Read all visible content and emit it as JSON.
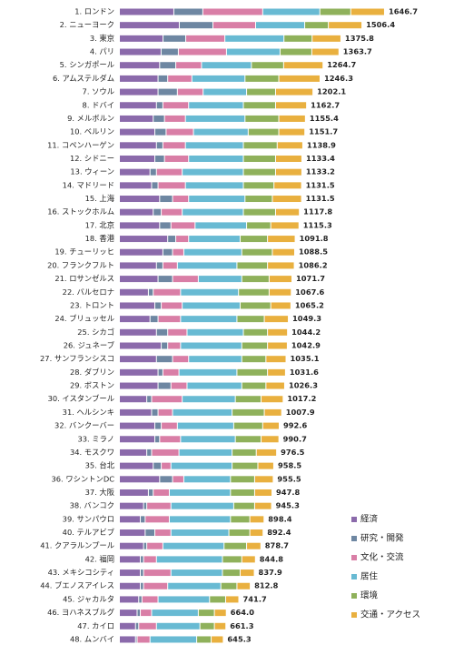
{
  "chart_data": {
    "type": "stacked-barh",
    "categories": [
      "1. ロンドン",
      "2. ニューヨーク",
      "3. 東京",
      "4. パリ",
      "5. シンガポール",
      "6. アムステルダム",
      "7. ソウル",
      "8. ドバイ",
      "9. メルボルン",
      "10. ベルリン",
      "11. コペンハーゲン",
      "12. シドニー",
      "13. ウィーン",
      "14. マドリード",
      "15. 上海",
      "16. ストックホルム",
      "17. 北京",
      "18. 香港",
      "19. チューリッヒ",
      "20. フランクフルト",
      "21. ロサンゼルス",
      "22. バルセロナ",
      "23. トロント",
      "24. ブリュッセル",
      "25. シカゴ",
      "26. ジュネーブ",
      "27. サンフランシスコ",
      "28. ダブリン",
      "29. ボストン",
      "30. イスタンブール",
      "31. ヘルシンキ",
      "32. バンクーバー",
      "33. ミラノ",
      "34. モスクワ",
      "35. 台北",
      "36. ワシントンDC",
      "37. 大阪",
      "38. バンコク",
      "39. サンパウロ",
      "40. テルアビブ",
      "41. クアラルンプール",
      "42. 福岡",
      "43. メキシコシティ",
      "44. ブエノスアイレス",
      "45. ジャカルタ",
      "46. ヨハネスブルグ",
      "47. カイロ",
      "48. ムンバイ"
    ],
    "series": [
      {
        "name": "経済",
        "color": "#8b6aab",
        "values": [
          338,
          372,
          271,
          259,
          250,
          240,
          240,
          230,
          210,
          220,
          230,
          220,
          190,
          200,
          250,
          210,
          250,
          300,
          270,
          230,
          240,
          180,
          220,
          190,
          230,
          260,
          230,
          240,
          240,
          170,
          200,
          220,
          220,
          170,
          210,
          250,
          180,
          150,
          130,
          160,
          150,
          130,
          130,
          130,
          120,
          110,
          100,
          100
        ]
      },
      {
        "name": "研究・開発",
        "color": "#6e87a2",
        "values": [
          180,
          209,
          141,
          107,
          100,
          60,
          120,
          40,
          70,
          70,
          40,
          60,
          40,
          40,
          80,
          50,
          70,
          50,
          60,
          40,
          90,
          30,
          40,
          50,
          70,
          40,
          100,
          30,
          80,
          30,
          40,
          40,
          30,
          30,
          50,
          80,
          30,
          20,
          30,
          60,
          20,
          20,
          20,
          20,
          20,
          20,
          20,
          10
        ]
      },
      {
        "name": "文化・交流",
        "color": "#d97ea6",
        "values": [
          372,
          265,
          243,
          299,
          160,
          150,
          160,
          160,
          130,
          170,
          140,
          150,
          160,
          170,
          100,
          130,
          150,
          80,
          70,
          90,
          160,
          170,
          130,
          140,
          120,
          80,
          100,
          100,
          100,
          190,
          90,
          100,
          130,
          170,
          60,
          70,
          100,
          150,
          150,
          100,
          100,
          80,
          170,
          150,
          100,
          70,
          110,
          80
        ]
      },
      {
        "name": "居住",
        "color": "#68bad3",
        "values": [
          355,
          305,
          367,
          333,
          310,
          330,
          270,
          340,
          370,
          340,
          360,
          340,
          380,
          360,
          350,
          380,
          320,
          320,
          360,
          370,
          270,
          360,
          360,
          350,
          350,
          380,
          330,
          360,
          340,
          330,
          370,
          350,
          340,
          330,
          380,
          290,
          380,
          390,
          380,
          360,
          380,
          410,
          320,
          330,
          320,
          290,
          270,
          290
        ]
      },
      {
        "name": "環境",
        "color": "#8fb15b",
        "values": [
          192,
          147,
          175,
          197,
          200,
          210,
          180,
          200,
          210,
          190,
          210,
          200,
          200,
          190,
          170,
          200,
          150,
          170,
          190,
          190,
          170,
          190,
          190,
          170,
          150,
          160,
          150,
          190,
          150,
          160,
          200,
          180,
          160,
          150,
          160,
          150,
          150,
          130,
          120,
          130,
          140,
          120,
          110,
          100,
          100,
          100,
          90,
          90
        ]
      },
      {
        "name": "交通・アクセス",
        "color": "#e9b03f",
        "values": [
          209.7,
          208.4,
          178.8,
          168.7,
          244.7,
          256.3,
          232.1,
          192.7,
          165.4,
          161.7,
          158.9,
          163.4,
          163.2,
          171.5,
          181.5,
          147.8,
          175.3,
          171.8,
          138.5,
          166.2,
          141.7,
          137.6,
          125.2,
          149.3,
          124.2,
          122.9,
          125.1,
          111.6,
          116.3,
          137.2,
          107.9,
          102.6,
          110.7,
          126.5,
          98.5,
          115.5,
          107.8,
          105.3,
          88.4,
          82.4,
          88.7,
          84.8,
          87.9,
          82.8,
          81.7,
          74,
          71.3,
          75.3
        ]
      }
    ],
    "totals": [
      1646.7,
      1506.4,
      1375.8,
      1363.7,
      1264.7,
      1246.3,
      1202.1,
      1162.7,
      1155.4,
      1151.7,
      1138.9,
      1133.4,
      1133.2,
      1131.5,
      1131.5,
      1117.8,
      1115.3,
      1091.8,
      1088.5,
      1086.2,
      1071.7,
      1067.6,
      1065.2,
      1049.3,
      1044.2,
      1042.9,
      1035.1,
      1031.6,
      1026.3,
      1017.2,
      1007.9,
      992.6,
      990.7,
      976.5,
      958.5,
      955.5,
      947.8,
      945.3,
      898.4,
      892.4,
      878.7,
      844.8,
      837.9,
      812.8,
      741.7,
      664,
      661.3,
      645.3
    ],
    "total_labels": [
      "1646.7",
      "1506.4",
      "1375.8",
      "1363.7",
      "1264.7",
      "1246.3",
      "1202.1",
      "1162.7",
      "1155.4",
      "1151.7",
      "1138.9",
      "1133.4",
      "1133.2",
      "1131.5",
      "1131.5",
      "1117.8",
      "1115.3",
      "1091.8",
      "1088.5",
      "1086.2",
      "1071.7",
      "1067.6",
      "1065.2",
      "1049.3",
      "1044.2",
      "1042.9",
      "1035.1",
      "1031.6",
      "1026.3",
      "1017.2",
      "1007.9",
      "992.6",
      "990.7",
      "976.5",
      "958.5",
      "955.5",
      "947.8",
      "945.3",
      "898.4",
      "892.4",
      "878.7",
      "844.8",
      "837.9",
      "812.8",
      "741.7",
      "664.0",
      "661.3",
      "645.3"
    ]
  }
}
